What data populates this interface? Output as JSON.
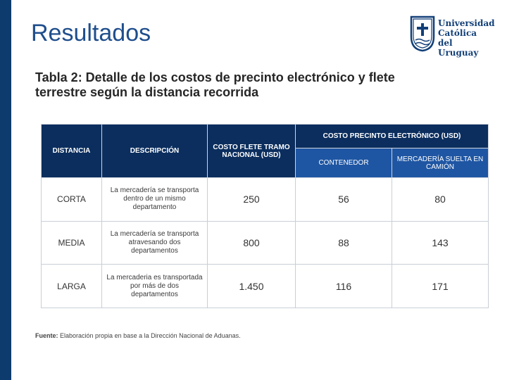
{
  "header": {
    "title": "Resultados"
  },
  "logo": {
    "line1": "Universidad",
    "line2": "Católica",
    "line3": "del Uruguay",
    "name": "ucu-logo"
  },
  "subtitle": "Tabla 2: Detalle de los costos de precinto electrónico y flete terrestre según la distancia recorrida",
  "table": {
    "headers": {
      "distancia": "DISTANCIA",
      "descripcion": "DESCRIPCIÓN",
      "costo_flete": "COSTO FLETE TRAMO NACIONAL (USD)",
      "costo_precinto": "COSTO PRECINTO ELECTRÓNICO (USD)",
      "contenedor": "CONTENEDOR",
      "mercaderia_suelta": "MERCADERÍA SUELTA EN CAMIÓN"
    },
    "rows": [
      {
        "distancia": "CORTA",
        "descripcion": "La mercadería se transporta dentro de un mismo departamento",
        "flete": "250",
        "contenedor": "56",
        "suelta": "80"
      },
      {
        "distancia": "MEDIA",
        "descripcion": "La mercadería se transporta atravesando dos departamentos",
        "flete": "800",
        "contenedor": "88",
        "suelta": "143"
      },
      {
        "distancia": "LARGA",
        "descripcion": "La mercaderia es transportada por más de dos departamentos",
        "flete": "1.450",
        "contenedor": "116",
        "suelta": "171"
      }
    ]
  },
  "source": {
    "label": "Fuente:",
    "text": "Elaboración propia en base a la Dirección Nacional de Aduanas."
  },
  "colors": {
    "sidebar": "#0e3b6e",
    "title": "#1f4e8c",
    "header": "#0b2e5e",
    "subheader": "#1f56a3"
  }
}
